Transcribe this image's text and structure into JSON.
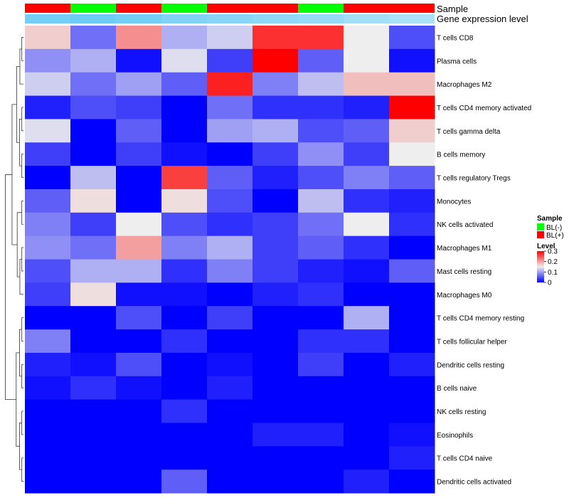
{
  "chart_data": {
    "type": "heatmap",
    "annotation_titles": {
      "sample": "Sample",
      "expression": "Gene expression level"
    },
    "samples": [
      {
        "group": "BL(+)",
        "expression_level": 0.85
      },
      {
        "group": "BL(-)",
        "expression_level": 0.9
      },
      {
        "group": "BL(+)",
        "expression_level": 0.85
      },
      {
        "group": "BL(-)",
        "expression_level": 0.75
      },
      {
        "group": "BL(+)",
        "expression_level": 0.7
      },
      {
        "group": "BL(+)",
        "expression_level": 0.65
      },
      {
        "group": "BL(-)",
        "expression_level": 0.6
      },
      {
        "group": "BL(+)",
        "expression_level": 0.5
      },
      {
        "group": "BL(+)",
        "expression_level": 0.45
      }
    ],
    "rows": [
      "T cells CD8",
      "Plasma cells",
      "Macrophages M2",
      "T cells CD4 memory activated",
      "T cells gamma delta",
      "B cells memory",
      "T cells regulatory  Tregs",
      "Monocytes",
      "NK cells activated",
      "Macrophages M1",
      "Mast cells resting",
      "Macrophages M0",
      "T cells CD4 memory resting",
      "T cells follicular helper",
      "Dendritic cells resting",
      "B cells naive",
      "NK cells resting",
      "Eosinophils",
      "T cells CD4 naive",
      "Dendritic cells activated"
    ],
    "values": [
      [
        0.17,
        0.07,
        0.21,
        0.11,
        0.13,
        0.27,
        0.27,
        0.15,
        0.05
      ],
      [
        0.09,
        0.11,
        0.01,
        0.14,
        0.04,
        0.3,
        0.06,
        0.15,
        0.01
      ],
      [
        0.13,
        0.07,
        0.1,
        0.06,
        0.28,
        0.08,
        0.12,
        0.18,
        0.18
      ],
      [
        0.02,
        0.05,
        0.04,
        0.0,
        0.07,
        0.03,
        0.03,
        0.02,
        0.3
      ],
      [
        0.14,
        0.0,
        0.06,
        0.0,
        0.1,
        0.11,
        0.05,
        0.06,
        0.17
      ],
      [
        0.04,
        0.0,
        0.04,
        0.01,
        0.0,
        0.04,
        0.09,
        0.04,
        0.15
      ],
      [
        0.0,
        0.12,
        0.0,
        0.26,
        0.06,
        0.02,
        0.05,
        0.08,
        0.06
      ],
      [
        0.06,
        0.16,
        0.0,
        0.16,
        0.05,
        0.0,
        0.12,
        0.03,
        0.02
      ],
      [
        0.08,
        0.04,
        0.15,
        0.05,
        0.03,
        0.04,
        0.07,
        0.15,
        0.03
      ],
      [
        0.09,
        0.07,
        0.2,
        0.08,
        0.11,
        0.04,
        0.06,
        0.03,
        0.0
      ],
      [
        0.05,
        0.11,
        0.11,
        0.03,
        0.08,
        0.04,
        0.02,
        0.01,
        0.06
      ],
      [
        0.04,
        0.16,
        0.01,
        0.01,
        0.0,
        0.02,
        0.03,
        0.0,
        0.0
      ],
      [
        0.0,
        0.0,
        0.05,
        0.0,
        0.04,
        0.0,
        0.0,
        0.11,
        0.0
      ],
      [
        0.08,
        0.0,
        0.0,
        0.03,
        0.0,
        0.0,
        0.03,
        0.03,
        0.0
      ],
      [
        0.02,
        0.01,
        0.05,
        0.0,
        0.01,
        0.0,
        0.04,
        0.0,
        0.02
      ],
      [
        0.01,
        0.03,
        0.01,
        0.0,
        0.02,
        0.0,
        0.0,
        0.0,
        0.0
      ],
      [
        0.0,
        0.0,
        0.0,
        0.03,
        0.0,
        0.0,
        0.0,
        0.0,
        0.0
      ],
      [
        0.0,
        0.0,
        0.0,
        0.0,
        0.0,
        0.02,
        0.02,
        0.0,
        0.01
      ],
      [
        0.0,
        0.0,
        0.0,
        0.0,
        0.0,
        0.0,
        0.0,
        0.0,
        0.02
      ],
      [
        0.0,
        0.0,
        0.0,
        0.06,
        0.0,
        0.0,
        0.0,
        0.02,
        0.0
      ]
    ],
    "legend": {
      "sample_title": "Sample",
      "groups": [
        {
          "label": "BL(-)",
          "color": "#00ff00"
        },
        {
          "label": "BL(+)",
          "color": "#ff0000"
        }
      ],
      "level_title": "Level",
      "level_ticks": [
        "0.3",
        "0.2",
        "0.1",
        "0"
      ],
      "level_tick_values": [
        0.3,
        0.2,
        0.1,
        0
      ],
      "range": [
        0,
        0.3
      ]
    },
    "colors": {
      "low": "#0000ff",
      "mid": "#eeeeee",
      "high": "#ff0000",
      "expr_low": "#e8f4fa",
      "expr_high": "#5ec8f5"
    }
  }
}
